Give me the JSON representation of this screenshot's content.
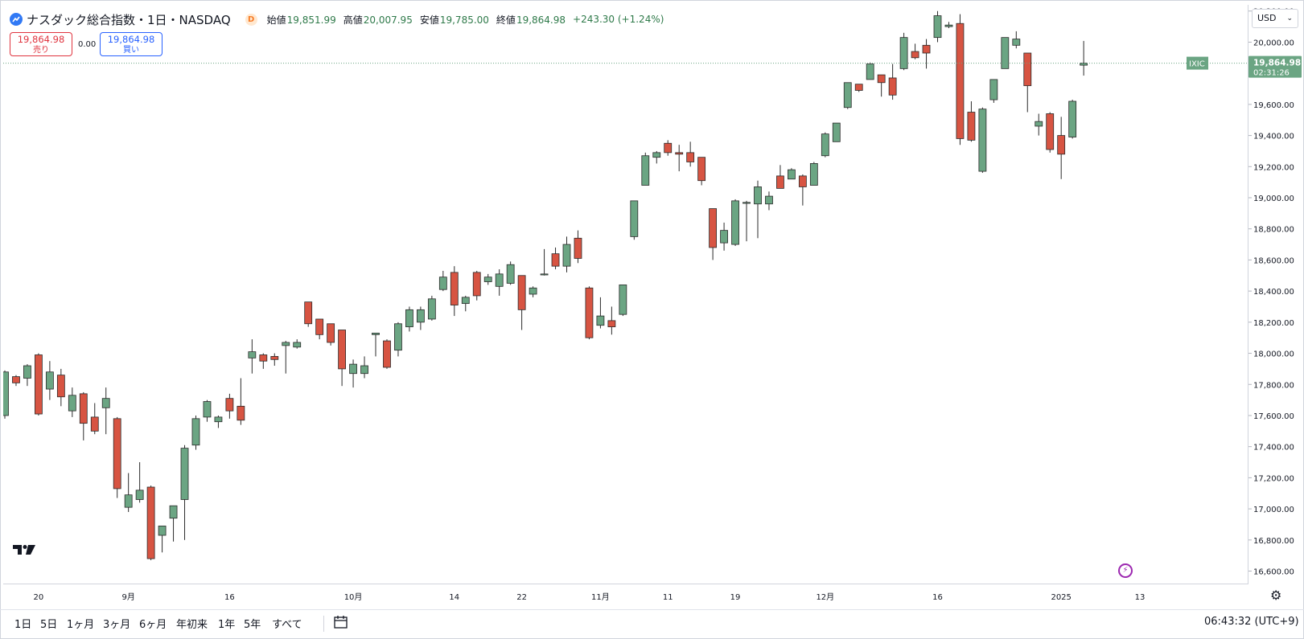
{
  "legend": {
    "symbol": "ナスダック総合指数・1日・NASDAQ",
    "source_badge": "D",
    "open_label": "始値",
    "open": "19,851.99",
    "high_label": "高値",
    "high": "20,007.95",
    "low_label": "安値",
    "low": "19,785.00",
    "close_label": "終値",
    "close": "19,864.98",
    "change": "+243.30 (+1.24%)"
  },
  "trade": {
    "sell_price": "19,864.98",
    "sell_label": "売り",
    "spread": "0.00",
    "buy_price": "19,864.98",
    "buy_label": "買い"
  },
  "currency": "USD",
  "price_label": {
    "ticker": "IXIC",
    "price": "19,864.98",
    "countdown": "02:31:26"
  },
  "colors": {
    "up": "#6ba583",
    "down": "#d75442",
    "axis_text": "#131722",
    "price_line": "#6ba583"
  },
  "bottom_bar": {
    "ranges": [
      "1日",
      "5日",
      "1ヶ月",
      "3ヶ月",
      "6ヶ月",
      "年初来",
      "1年",
      "5年",
      "すべて"
    ],
    "time": "06:43:32 (UTC+9)"
  },
  "icons": [
    "tradingview-logo-icon",
    "symbol-logo-icon",
    "lightning-icon",
    "gear-icon",
    "calendar-range-icon",
    "chevron-down-icon"
  ],
  "chart_data": {
    "type": "candlestick",
    "symbol": "IXIC",
    "y_ticks": [
      16600,
      16800,
      17000,
      17200,
      17400,
      17600,
      17800,
      18000,
      18200,
      18400,
      18600,
      18800,
      19000,
      19200,
      19400,
      19600,
      19800,
      20000,
      20200
    ],
    "y_tick_labels": [
      "16,600.00",
      "16,800.00",
      "17,000.00",
      "17,200.00",
      "17,400.00",
      "17,600.00",
      "17,800.00",
      "18,000.00",
      "18,200.00",
      "18,400.00",
      "18,600.00",
      "18,800.00",
      "19,000.00",
      "19,200.00",
      "19,400.00",
      "19,600.00",
      "19,800.00",
      "20,000.00",
      "20,200.00"
    ],
    "ylim": [
      16520,
      20240
    ],
    "x_labels": [
      {
        "label": "20",
        "date": "2024-08-20"
      },
      {
        "label": "9月",
        "date": "2024-09-03"
      },
      {
        "label": "16",
        "date": "2024-09-16"
      },
      {
        "label": "10月",
        "date": "2024-10-01"
      },
      {
        "label": "14",
        "date": "2024-10-14"
      },
      {
        "label": "22",
        "date": "2024-10-22"
      },
      {
        "label": "11月",
        "date": "2024-11-01"
      },
      {
        "label": "11",
        "date": "2024-11-11"
      },
      {
        "label": "19",
        "date": "2024-11-19"
      },
      {
        "label": "12月",
        "date": "2024-12-02"
      },
      {
        "label": "16",
        "date": "2024-12-16"
      },
      {
        "label": "2025",
        "date": "2025-01-02"
      },
      {
        "label": "13",
        "date": "2025-01-13"
      }
    ],
    "last_price": 19864.98,
    "candles": [
      {
        "date": "2024-08-15",
        "o": 17600,
        "h": 17890,
        "l": 17580,
        "c": 17880
      },
      {
        "date": "2024-08-16",
        "o": 17850,
        "h": 17860,
        "l": 17790,
        "c": 17810
      },
      {
        "date": "2024-08-19",
        "o": 17840,
        "h": 17930,
        "l": 17790,
        "c": 17920
      },
      {
        "date": "2024-08-20",
        "o": 17990,
        "h": 18000,
        "l": 17600,
        "c": 17610
      },
      {
        "date": "2024-08-21",
        "o": 17770,
        "h": 17950,
        "l": 17700,
        "c": 17880
      },
      {
        "date": "2024-08-22",
        "o": 17860,
        "h": 17900,
        "l": 17660,
        "c": 17720
      },
      {
        "date": "2024-08-23",
        "o": 17630,
        "h": 17780,
        "l": 17590,
        "c": 17730
      },
      {
        "date": "2024-08-26",
        "o": 17740,
        "h": 17750,
        "l": 17440,
        "c": 17550
      },
      {
        "date": "2024-08-27",
        "o": 17590,
        "h": 17680,
        "l": 17480,
        "c": 17500
      },
      {
        "date": "2024-08-28",
        "o": 17650,
        "h": 17780,
        "l": 17480,
        "c": 17710
      },
      {
        "date": "2024-08-30",
        "o": 17580,
        "h": 17590,
        "l": 17070,
        "c": 17130
      },
      {
        "date": "2024-09-03",
        "o": 17010,
        "h": 17230,
        "l": 16980,
        "c": 17090
      },
      {
        "date": "2024-09-04",
        "o": 17060,
        "h": 17300,
        "l": 17040,
        "c": 17120
      },
      {
        "date": "2024-09-05",
        "o": 17140,
        "h": 17150,
        "l": 16670,
        "c": 16680
      },
      {
        "date": "2024-09-06",
        "o": 16830,
        "h": 16890,
        "l": 16720,
        "c": 16890
      },
      {
        "date": "2024-09-09",
        "o": 16940,
        "h": 17000,
        "l": 16790,
        "c": 17020
      },
      {
        "date": "2024-09-10",
        "o": 17060,
        "h": 17410,
        "l": 16800,
        "c": 17390
      },
      {
        "date": "2024-09-11",
        "o": 17410,
        "h": 17600,
        "l": 17380,
        "c": 17580
      },
      {
        "date": "2024-09-12",
        "o": 17590,
        "h": 17700,
        "l": 17560,
        "c": 17690
      },
      {
        "date": "2024-09-13",
        "o": 17560,
        "h": 17600,
        "l": 17520,
        "c": 17590
      },
      {
        "date": "2024-09-16",
        "o": 17710,
        "h": 17740,
        "l": 17580,
        "c": 17630
      },
      {
        "date": "2024-09-17",
        "o": 17660,
        "h": 17840,
        "l": 17540,
        "c": 17570
      },
      {
        "date": "2024-09-18",
        "o": 17970,
        "h": 18090,
        "l": 17870,
        "c": 18010
      },
      {
        "date": "2024-09-19",
        "o": 17990,
        "h": 18000,
        "l": 17900,
        "c": 17950
      },
      {
        "date": "2024-09-20",
        "o": 17980,
        "h": 18000,
        "l": 17920,
        "c": 17960
      },
      {
        "date": "2024-09-23",
        "o": 18050,
        "h": 18080,
        "l": 17870,
        "c": 18070
      },
      {
        "date": "2024-09-24",
        "o": 18040,
        "h": 18090,
        "l": 18030,
        "c": 18070
      },
      {
        "date": "2024-09-25",
        "o": 18330,
        "h": 18330,
        "l": 18170,
        "c": 18190
      },
      {
        "date": "2024-09-26",
        "o": 18220,
        "h": 18220,
        "l": 18090,
        "c": 18120
      },
      {
        "date": "2024-09-27",
        "o": 18190,
        "h": 18190,
        "l": 18050,
        "c": 18070
      },
      {
        "date": "2024-09-30",
        "o": 18150,
        "h": 18150,
        "l": 17790,
        "c": 17900
      },
      {
        "date": "2024-10-01",
        "o": 17870,
        "h": 17960,
        "l": 17780,
        "c": 17930
      },
      {
        "date": "2024-10-02",
        "o": 17870,
        "h": 17980,
        "l": 17840,
        "c": 17920
      },
      {
        "date": "2024-10-03",
        "o": 18120,
        "h": 18130,
        "l": 17980,
        "c": 18130
      },
      {
        "date": "2024-10-04",
        "o": 18080,
        "h": 18090,
        "l": 17900,
        "c": 17910
      },
      {
        "date": "2024-10-07",
        "o": 18020,
        "h": 18200,
        "l": 17980,
        "c": 18190
      },
      {
        "date": "2024-10-08",
        "o": 18170,
        "h": 18300,
        "l": 18140,
        "c": 18280
      },
      {
        "date": "2024-10-09",
        "o": 18200,
        "h": 18300,
        "l": 18150,
        "c": 18280
      },
      {
        "date": "2024-10-10",
        "o": 18220,
        "h": 18370,
        "l": 18210,
        "c": 18350
      },
      {
        "date": "2024-10-11",
        "o": 18410,
        "h": 18530,
        "l": 18400,
        "c": 18490
      },
      {
        "date": "2024-10-14",
        "o": 18520,
        "h": 18560,
        "l": 18240,
        "c": 18310
      },
      {
        "date": "2024-10-15",
        "o": 18320,
        "h": 18370,
        "l": 18270,
        "c": 18360
      },
      {
        "date": "2024-10-16",
        "o": 18520,
        "h": 18530,
        "l": 18340,
        "c": 18370
      },
      {
        "date": "2024-10-17",
        "o": 18460,
        "h": 18510,
        "l": 18440,
        "c": 18490
      },
      {
        "date": "2024-10-18",
        "o": 18430,
        "h": 18540,
        "l": 18370,
        "c": 18510
      },
      {
        "date": "2024-10-21",
        "o": 18450,
        "h": 18590,
        "l": 18440,
        "c": 18570
      },
      {
        "date": "2024-10-22",
        "o": 18500,
        "h": 18500,
        "l": 18150,
        "c": 18280
      },
      {
        "date": "2024-10-23",
        "o": 18380,
        "h": 18430,
        "l": 18360,
        "c": 18420
      },
      {
        "date": "2024-10-24",
        "o": 18510,
        "h": 18670,
        "l": 18500,
        "c": 18510
      },
      {
        "date": "2024-10-25",
        "o": 18640,
        "h": 18680,
        "l": 18540,
        "c": 18560
      },
      {
        "date": "2024-10-28",
        "o": 18560,
        "h": 18750,
        "l": 18520,
        "c": 18700
      },
      {
        "date": "2024-10-29",
        "o": 18740,
        "h": 18790,
        "l": 18580,
        "c": 18610
      },
      {
        "date": "2024-10-31",
        "o": 18420,
        "h": 18430,
        "l": 18090,
        "c": 18100
      },
      {
        "date": "2024-11-01",
        "o": 18180,
        "h": 18360,
        "l": 18160,
        "c": 18240
      },
      {
        "date": "2024-11-04",
        "o": 18210,
        "h": 18300,
        "l": 18120,
        "c": 18170
      },
      {
        "date": "2024-11-05",
        "o": 18250,
        "h": 18440,
        "l": 18240,
        "c": 18440
      },
      {
        "date": "2024-11-06",
        "o": 18750,
        "h": 18980,
        "l": 18730,
        "c": 18980
      },
      {
        "date": "2024-11-07",
        "o": 19080,
        "h": 19290,
        "l": 19080,
        "c": 19270
      },
      {
        "date": "2024-11-08",
        "o": 19260,
        "h": 19300,
        "l": 19220,
        "c": 19290
      },
      {
        "date": "2024-11-11",
        "o": 19350,
        "h": 19370,
        "l": 19270,
        "c": 19290
      },
      {
        "date": "2024-11-12",
        "o": 19290,
        "h": 19340,
        "l": 19170,
        "c": 19280
      },
      {
        "date": "2024-11-13",
        "o": 19290,
        "h": 19360,
        "l": 19200,
        "c": 19230
      },
      {
        "date": "2024-11-14",
        "o": 19260,
        "h": 19260,
        "l": 19080,
        "c": 19110
      },
      {
        "date": "2024-11-15",
        "o": 18930,
        "h": 18930,
        "l": 18600,
        "c": 18680
      },
      {
        "date": "2024-11-18",
        "o": 18710,
        "h": 18840,
        "l": 18660,
        "c": 18790
      },
      {
        "date": "2024-11-19",
        "o": 18700,
        "h": 18990,
        "l": 18690,
        "c": 18980
      },
      {
        "date": "2024-11-20",
        "o": 18970,
        "h": 18980,
        "l": 18720,
        "c": 18970
      },
      {
        "date": "2024-11-21",
        "o": 18960,
        "h": 19110,
        "l": 18740,
        "c": 19070
      },
      {
        "date": "2024-11-22",
        "o": 18960,
        "h": 19040,
        "l": 18920,
        "c": 19010
      },
      {
        "date": "2024-11-25",
        "o": 19140,
        "h": 19210,
        "l": 19060,
        "c": 19060
      },
      {
        "date": "2024-11-26",
        "o": 19120,
        "h": 19190,
        "l": 19120,
        "c": 19180
      },
      {
        "date": "2024-11-27",
        "o": 19140,
        "h": 19150,
        "l": 18950,
        "c": 19070
      },
      {
        "date": "2024-11-29",
        "o": 19080,
        "h": 19230,
        "l": 19080,
        "c": 19220
      },
      {
        "date": "2024-12-02",
        "o": 19270,
        "h": 19420,
        "l": 19260,
        "c": 19410
      },
      {
        "date": "2024-12-03",
        "o": 19360,
        "h": 19480,
        "l": 19360,
        "c": 19480
      },
      {
        "date": "2024-12-04",
        "o": 19580,
        "h": 19740,
        "l": 19570,
        "c": 19740
      },
      {
        "date": "2024-12-05",
        "o": 19730,
        "h": 19730,
        "l": 19680,
        "c": 19690
      },
      {
        "date": "2024-12-06",
        "o": 19760,
        "h": 19870,
        "l": 19760,
        "c": 19860
      },
      {
        "date": "2024-12-09",
        "o": 19790,
        "h": 19790,
        "l": 19650,
        "c": 19740
      },
      {
        "date": "2024-12-10",
        "o": 19770,
        "h": 19860,
        "l": 19630,
        "c": 19660
      },
      {
        "date": "2024-12-11",
        "o": 19830,
        "h": 20060,
        "l": 19820,
        "c": 20030
      },
      {
        "date": "2024-12-12",
        "o": 19940,
        "h": 19990,
        "l": 19890,
        "c": 19900
      },
      {
        "date": "2024-12-13",
        "o": 19980,
        "h": 20020,
        "l": 19830,
        "c": 19930
      },
      {
        "date": "2024-12-16",
        "o": 20030,
        "h": 20200,
        "l": 20000,
        "c": 20170
      },
      {
        "date": "2024-12-17",
        "o": 20100,
        "h": 20130,
        "l": 20090,
        "c": 20110
      },
      {
        "date": "2024-12-18",
        "o": 20120,
        "h": 20180,
        "l": 19340,
        "c": 19380
      },
      {
        "date": "2024-12-19",
        "o": 19550,
        "h": 19620,
        "l": 19360,
        "c": 19370
      },
      {
        "date": "2024-12-20",
        "o": 19170,
        "h": 19580,
        "l": 19160,
        "c": 19570
      },
      {
        "date": "2024-12-23",
        "o": 19630,
        "h": 19760,
        "l": 19610,
        "c": 19760
      },
      {
        "date": "2024-12-24",
        "o": 19830,
        "h": 20030,
        "l": 19830,
        "c": 20030
      },
      {
        "date": "2024-12-26",
        "o": 19980,
        "h": 20070,
        "l": 19960,
        "c": 20020
      },
      {
        "date": "2024-12-27",
        "o": 19930,
        "h": 19930,
        "l": 19550,
        "c": 19720
      },
      {
        "date": "2024-12-30",
        "o": 19460,
        "h": 19540,
        "l": 19400,
        "c": 19490
      },
      {
        "date": "2024-12-31",
        "o": 19540,
        "h": 19550,
        "l": 19290,
        "c": 19310
      },
      {
        "date": "2025-01-02",
        "o": 19400,
        "h": 19520,
        "l": 19120,
        "c": 19280
      },
      {
        "date": "2025-01-03",
        "o": 19390,
        "h": 19630,
        "l": 19380,
        "c": 19620
      },
      {
        "date": "2025-01-06",
        "o": 19851.99,
        "h": 20007.95,
        "l": 19785.0,
        "c": 19864.98
      }
    ]
  }
}
